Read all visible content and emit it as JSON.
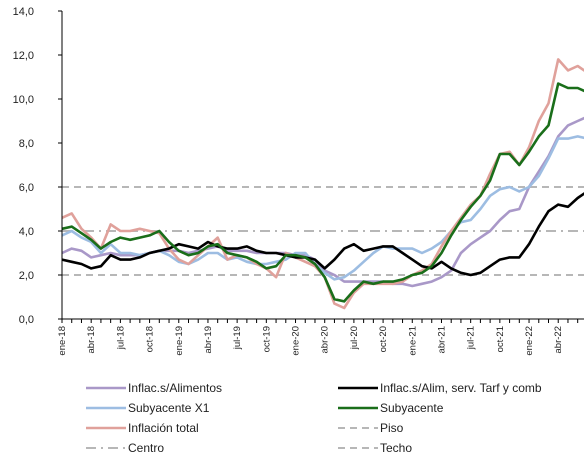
{
  "chart_data": {
    "type": "line",
    "title": "",
    "xlabel": "",
    "ylabel": "",
    "ylim": [
      0,
      14
    ],
    "yticks": [
      "0,0",
      "2,0",
      "4,0",
      "6,0",
      "8,0",
      "10,0",
      "12,0",
      "14,0"
    ],
    "yticks_values": [
      0,
      2,
      4,
      6,
      8,
      10,
      12,
      14
    ],
    "x": [
      "ene-18",
      "feb-18",
      "mar-18",
      "abr-18",
      "may-18",
      "jun-18",
      "jul-18",
      "ago-18",
      "sep-18",
      "oct-18",
      "nov-18",
      "dic-18",
      "ene-19",
      "feb-19",
      "mar-19",
      "abr-19",
      "may-19",
      "jun-19",
      "jul-19",
      "ago-19",
      "sep-19",
      "oct-19",
      "nov-19",
      "dic-19",
      "ene-20",
      "feb-20",
      "mar-20",
      "abr-20",
      "may-20",
      "jun-20",
      "jul-20",
      "ago-20",
      "sep-20",
      "oct-20",
      "nov-20",
      "dic-20",
      "ene-21",
      "feb-21",
      "mar-21",
      "abr-21",
      "may-21",
      "jun-21",
      "jul-21",
      "ago-21",
      "sep-21",
      "oct-21",
      "nov-21",
      "dic-21",
      "ene-22",
      "feb-22",
      "mar-22",
      "abr-22",
      "may-22",
      "jun-22",
      "jul-22"
    ],
    "xtick_labels": [
      "ene-18",
      "abr-18",
      "jul-18",
      "oct-18",
      "ene-19",
      "abr-19",
      "jul-19",
      "oct-19",
      "ene-20",
      "abr-20",
      "jul-20",
      "oct-20",
      "ene-21",
      "abr-21",
      "jul-21",
      "oct-21",
      "ene-22",
      "abr-22"
    ],
    "grid": false,
    "legend_position": "bottom",
    "series": [
      {
        "name": "Inflac.s/Alimentos",
        "color": "#a998c8",
        "style": "solid",
        "width": 2.6,
        "values": [
          3.0,
          3.2,
          3.1,
          2.8,
          2.9,
          3.0,
          2.9,
          2.9,
          2.9,
          3.0,
          3.1,
          3.1,
          3.1,
          3.0,
          3.1,
          3.2,
          3.3,
          3.1,
          3.1,
          3.1,
          3.0,
          3.0,
          3.0,
          3.0,
          2.9,
          2.9,
          2.7,
          2.2,
          2.0,
          1.7,
          1.7,
          1.7,
          1.7,
          1.7,
          1.6,
          1.6,
          1.5,
          1.6,
          1.7,
          1.9,
          2.2,
          3.0,
          3.4,
          3.7,
          4.0,
          4.5,
          4.9,
          5.0,
          6.0,
          6.7,
          7.4,
          8.3,
          8.8,
          9.0,
          9.2
        ]
      },
      {
        "name": "Inflac.s/Alim, serv. Tarf y comb",
        "color": "#000000",
        "style": "solid",
        "width": 2.6,
        "values": [
          2.7,
          2.6,
          2.5,
          2.3,
          2.4,
          2.9,
          2.7,
          2.7,
          2.8,
          3.0,
          3.1,
          3.2,
          3.4,
          3.3,
          3.2,
          3.5,
          3.3,
          3.2,
          3.2,
          3.3,
          3.1,
          3.0,
          3.0,
          2.9,
          2.8,
          2.8,
          2.7,
          2.3,
          2.7,
          3.2,
          3.4,
          3.1,
          3.2,
          3.3,
          3.3,
          3.0,
          2.7,
          2.4,
          2.3,
          2.6,
          2.3,
          2.1,
          2.0,
          2.1,
          2.4,
          2.7,
          2.8,
          2.8,
          3.4,
          4.2,
          4.9,
          5.2,
          5.1,
          5.5,
          5.8
        ]
      },
      {
        "name": "Subyacente X1",
        "color": "#9dbde2",
        "style": "solid",
        "width": 2.6,
        "values": [
          3.8,
          4.0,
          3.7,
          3.5,
          3.0,
          3.4,
          3.0,
          3.0,
          2.9,
          3.0,
          3.1,
          2.9,
          2.6,
          2.5,
          2.7,
          3.0,
          3.0,
          2.7,
          2.8,
          2.6,
          2.5,
          2.5,
          2.6,
          2.7,
          3.0,
          3.0,
          2.5,
          2.1,
          1.8,
          1.9,
          2.2,
          2.6,
          3.0,
          3.3,
          3.2,
          3.2,
          3.2,
          3.0,
          3.2,
          3.5,
          4.0,
          4.4,
          4.5,
          5.0,
          5.6,
          5.9,
          6.0,
          5.8,
          6.0,
          6.5,
          7.3,
          8.2,
          8.2,
          8.3,
          8.2
        ]
      },
      {
        "name": "Subyacente",
        "color": "#1a6e1a",
        "style": "solid",
        "width": 2.6,
        "values": [
          4.1,
          4.2,
          3.9,
          3.6,
          3.2,
          3.5,
          3.7,
          3.6,
          3.7,
          3.8,
          4.0,
          3.5,
          3.1,
          2.9,
          3.0,
          3.3,
          3.4,
          3.0,
          2.9,
          2.8,
          2.6,
          2.3,
          2.4,
          2.9,
          2.9,
          2.8,
          2.5,
          1.9,
          0.9,
          0.8,
          1.3,
          1.7,
          1.6,
          1.7,
          1.7,
          1.8,
          2.0,
          2.1,
          2.4,
          3.0,
          3.8,
          4.5,
          5.1,
          5.6,
          6.3,
          7.5,
          7.5,
          7.0,
          7.6,
          8.3,
          8.8,
          10.7,
          10.5,
          10.5,
          10.3
        ]
      },
      {
        "name": "Inflación total",
        "color": "#e0a19b",
        "style": "solid",
        "width": 2.6,
        "values": [
          4.6,
          4.8,
          4.1,
          3.7,
          3.2,
          4.3,
          4.0,
          4.0,
          4.1,
          4.0,
          3.9,
          3.2,
          2.7,
          2.5,
          2.9,
          3.3,
          3.7,
          2.7,
          2.9,
          2.8,
          2.5,
          2.3,
          1.9,
          3.0,
          2.8,
          2.6,
          2.4,
          1.9,
          0.7,
          0.5,
          1.2,
          1.6,
          1.6,
          1.6,
          1.6,
          1.7,
          2.0,
          2.2,
          2.5,
          3.3,
          4.0,
          4.6,
          5.2,
          5.6,
          6.6,
          7.5,
          7.6,
          7.0,
          7.8,
          9.0,
          9.8,
          11.8,
          11.3,
          11.5,
          11.2
        ]
      },
      {
        "name": "Piso",
        "color": "#b7b7b7",
        "style": "dashed",
        "width": 2,
        "values": [
          2,
          2,
          2,
          2,
          2,
          2,
          2,
          2,
          2,
          2,
          2,
          2,
          2,
          2,
          2,
          2,
          2,
          2,
          2,
          2,
          2,
          2,
          2,
          2,
          2,
          2,
          2,
          2,
          2,
          2,
          2,
          2,
          2,
          2,
          2,
          2,
          2,
          2,
          2,
          2,
          2,
          2,
          2,
          2,
          2,
          2,
          2,
          2,
          2,
          2,
          2,
          2,
          2,
          2,
          2
        ]
      },
      {
        "name": "Centro",
        "color": "#b7b7b7",
        "style": "dashdot",
        "width": 2,
        "values": [
          4,
          4,
          4,
          4,
          4,
          4,
          4,
          4,
          4,
          4,
          4,
          4,
          4,
          4,
          4,
          4,
          4,
          4,
          4,
          4,
          4,
          4,
          4,
          4,
          4,
          4,
          4,
          4,
          4,
          4,
          4,
          4,
          4,
          4,
          4,
          4,
          4,
          4,
          4,
          4,
          4,
          4,
          4,
          4,
          4,
          4,
          4,
          4,
          4,
          4,
          4,
          4,
          4,
          4,
          4
        ]
      },
      {
        "name": "Techo",
        "color": "#b7b7b7",
        "style": "dashed",
        "width": 2,
        "values": [
          6,
          6,
          6,
          6,
          6,
          6,
          6,
          6,
          6,
          6,
          6,
          6,
          6,
          6,
          6,
          6,
          6,
          6,
          6,
          6,
          6,
          6,
          6,
          6,
          6,
          6,
          6,
          6,
          6,
          6,
          6,
          6,
          6,
          6,
          6,
          6,
          6,
          6,
          6,
          6,
          6,
          6,
          6,
          6,
          6,
          6,
          6,
          6,
          6,
          6,
          6,
          6,
          6,
          6,
          6
        ]
      }
    ]
  }
}
